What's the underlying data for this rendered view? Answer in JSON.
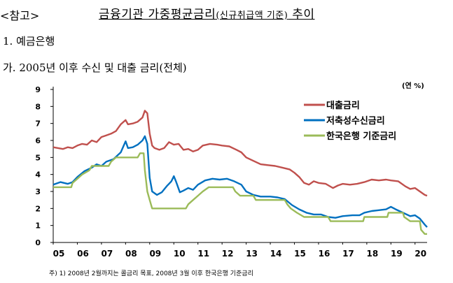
{
  "header": {
    "ref_tag": "<참고>",
    "title_main": "금융기관 가중평균금리",
    "title_paren": "(신규취급액 기준)",
    "title_end": " 추이"
  },
  "section": "1. 예금은행",
  "subsection": "가. 2005년 이후 수신 및 대출 금리(전체)",
  "unit": "(연 %)",
  "footnote": "주) 1) 2008년 2월까지는 콜금리 목표, 2008년 3월 이후 한국은행 기준금리",
  "chart_data": {
    "type": "line",
    "x_tick_labels": [
      "05",
      "06",
      "07",
      "08",
      "09",
      "10",
      "11",
      "12",
      "13",
      "14",
      "15",
      "16",
      "17",
      "18",
      "19",
      "20"
    ],
    "xlim": [
      2005.0,
      2020.5
    ],
    "ylim": [
      0,
      9
    ],
    "y_ticks": [
      0,
      1,
      2,
      3,
      4,
      5,
      6,
      7,
      8,
      9
    ],
    "ylabel": "(연 %)",
    "grid": false,
    "legend": "top-right",
    "series": [
      {
        "name": "대출금리",
        "color": "#c0504d",
        "points": [
          [
            2005.0,
            5.6
          ],
          [
            2005.2,
            5.55
          ],
          [
            2005.4,
            5.5
          ],
          [
            2005.6,
            5.6
          ],
          [
            2005.8,
            5.55
          ],
          [
            2006.0,
            5.7
          ],
          [
            2006.2,
            5.8
          ],
          [
            2006.4,
            5.75
          ],
          [
            2006.6,
            6.0
          ],
          [
            2006.8,
            5.9
          ],
          [
            2007.0,
            6.2
          ],
          [
            2007.2,
            6.3
          ],
          [
            2007.4,
            6.4
          ],
          [
            2007.6,
            6.55
          ],
          [
            2007.8,
            6.95
          ],
          [
            2008.0,
            7.2
          ],
          [
            2008.1,
            6.95
          ],
          [
            2008.3,
            7.0
          ],
          [
            2008.5,
            7.1
          ],
          [
            2008.7,
            7.35
          ],
          [
            2008.8,
            7.75
          ],
          [
            2008.9,
            7.6
          ],
          [
            2009.0,
            6.4
          ],
          [
            2009.1,
            5.7
          ],
          [
            2009.2,
            5.55
          ],
          [
            2009.4,
            5.45
          ],
          [
            2009.6,
            5.55
          ],
          [
            2009.8,
            5.9
          ],
          [
            2010.0,
            5.75
          ],
          [
            2010.2,
            5.8
          ],
          [
            2010.4,
            5.45
          ],
          [
            2010.6,
            5.5
          ],
          [
            2010.8,
            5.35
          ],
          [
            2011.0,
            5.45
          ],
          [
            2011.2,
            5.7
          ],
          [
            2011.5,
            5.8
          ],
          [
            2011.8,
            5.75
          ],
          [
            2012.0,
            5.7
          ],
          [
            2012.3,
            5.65
          ],
          [
            2012.6,
            5.45
          ],
          [
            2012.8,
            5.3
          ],
          [
            2013.0,
            5.0
          ],
          [
            2013.3,
            4.8
          ],
          [
            2013.6,
            4.6
          ],
          [
            2013.9,
            4.55
          ],
          [
            2014.2,
            4.5
          ],
          [
            2014.5,
            4.4
          ],
          [
            2014.8,
            4.3
          ],
          [
            2015.0,
            4.1
          ],
          [
            2015.2,
            3.85
          ],
          [
            2015.4,
            3.5
          ],
          [
            2015.6,
            3.4
          ],
          [
            2015.8,
            3.6
          ],
          [
            2016.0,
            3.5
          ],
          [
            2016.3,
            3.45
          ],
          [
            2016.6,
            3.2
          ],
          [
            2016.8,
            3.35
          ],
          [
            2017.0,
            3.45
          ],
          [
            2017.3,
            3.4
          ],
          [
            2017.6,
            3.45
          ],
          [
            2017.9,
            3.55
          ],
          [
            2018.2,
            3.7
          ],
          [
            2018.5,
            3.65
          ],
          [
            2018.8,
            3.7
          ],
          [
            2019.0,
            3.65
          ],
          [
            2019.3,
            3.6
          ],
          [
            2019.6,
            3.3
          ],
          [
            2019.8,
            3.15
          ],
          [
            2020.0,
            3.2
          ],
          [
            2020.2,
            3.0
          ],
          [
            2020.4,
            2.8
          ],
          [
            2020.5,
            2.75
          ]
        ]
      },
      {
        "name": "저축성수신금리",
        "color": "#0070c0",
        "points": [
          [
            2005.0,
            3.4
          ],
          [
            2005.3,
            3.55
          ],
          [
            2005.6,
            3.45
          ],
          [
            2005.8,
            3.55
          ],
          [
            2006.0,
            3.85
          ],
          [
            2006.3,
            4.2
          ],
          [
            2006.6,
            4.4
          ],
          [
            2006.8,
            4.6
          ],
          [
            2007.0,
            4.5
          ],
          [
            2007.2,
            4.75
          ],
          [
            2007.5,
            4.9
          ],
          [
            2007.8,
            5.3
          ],
          [
            2008.0,
            5.95
          ],
          [
            2008.1,
            5.55
          ],
          [
            2008.3,
            5.6
          ],
          [
            2008.5,
            5.75
          ],
          [
            2008.7,
            6.0
          ],
          [
            2008.8,
            6.25
          ],
          [
            2008.9,
            5.8
          ],
          [
            2009.0,
            3.8
          ],
          [
            2009.1,
            3.0
          ],
          [
            2009.3,
            2.8
          ],
          [
            2009.5,
            2.95
          ],
          [
            2009.7,
            3.3
          ],
          [
            2009.9,
            3.6
          ],
          [
            2010.0,
            3.9
          ],
          [
            2010.1,
            3.55
          ],
          [
            2010.25,
            2.95
          ],
          [
            2010.4,
            3.05
          ],
          [
            2010.6,
            3.2
          ],
          [
            2010.8,
            3.1
          ],
          [
            2011.0,
            3.4
          ],
          [
            2011.3,
            3.65
          ],
          [
            2011.6,
            3.75
          ],
          [
            2011.9,
            3.7
          ],
          [
            2012.2,
            3.75
          ],
          [
            2012.5,
            3.6
          ],
          [
            2012.8,
            3.4
          ],
          [
            2013.0,
            3.0
          ],
          [
            2013.3,
            2.8
          ],
          [
            2013.6,
            2.7
          ],
          [
            2014.0,
            2.7
          ],
          [
            2014.3,
            2.65
          ],
          [
            2014.6,
            2.55
          ],
          [
            2014.9,
            2.2
          ],
          [
            2015.2,
            1.95
          ],
          [
            2015.5,
            1.75
          ],
          [
            2015.8,
            1.65
          ],
          [
            2016.1,
            1.65
          ],
          [
            2016.4,
            1.5
          ],
          [
            2016.7,
            1.45
          ],
          [
            2017.0,
            1.55
          ],
          [
            2017.4,
            1.6
          ],
          [
            2017.7,
            1.6
          ],
          [
            2017.9,
            1.75
          ],
          [
            2018.2,
            1.85
          ],
          [
            2018.5,
            1.9
          ],
          [
            2018.8,
            1.95
          ],
          [
            2019.0,
            2.1
          ],
          [
            2019.2,
            1.95
          ],
          [
            2019.5,
            1.75
          ],
          [
            2019.8,
            1.55
          ],
          [
            2020.0,
            1.6
          ],
          [
            2020.2,
            1.4
          ],
          [
            2020.4,
            1.05
          ],
          [
            2020.5,
            0.9
          ]
        ]
      },
      {
        "name": "한국은행 기준금리",
        "color": "#9bbb59",
        "points": [
          [
            2005.0,
            3.25
          ],
          [
            2005.75,
            3.25
          ],
          [
            2005.8,
            3.5
          ],
          [
            2006.0,
            3.75
          ],
          [
            2006.2,
            4.0
          ],
          [
            2006.5,
            4.25
          ],
          [
            2006.6,
            4.5
          ],
          [
            2007.3,
            4.5
          ],
          [
            2007.4,
            4.75
          ],
          [
            2007.6,
            5.0
          ],
          [
            2008.5,
            5.0
          ],
          [
            2008.6,
            5.25
          ],
          [
            2008.75,
            5.25
          ],
          [
            2008.8,
            4.25
          ],
          [
            2008.9,
            3.0
          ],
          [
            2009.0,
            2.5
          ],
          [
            2009.1,
            2.0
          ],
          [
            2010.5,
            2.0
          ],
          [
            2010.6,
            2.25
          ],
          [
            2010.8,
            2.5
          ],
          [
            2011.0,
            2.75
          ],
          [
            2011.2,
            3.0
          ],
          [
            2011.45,
            3.25
          ],
          [
            2012.45,
            3.25
          ],
          [
            2012.55,
            3.0
          ],
          [
            2012.75,
            2.75
          ],
          [
            2013.3,
            2.75
          ],
          [
            2013.4,
            2.5
          ],
          [
            2014.6,
            2.5
          ],
          [
            2014.7,
            2.25
          ],
          [
            2014.85,
            2.0
          ],
          [
            2015.1,
            1.75
          ],
          [
            2015.4,
            1.5
          ],
          [
            2016.4,
            1.5
          ],
          [
            2016.5,
            1.25
          ],
          [
            2017.85,
            1.25
          ],
          [
            2017.9,
            1.5
          ],
          [
            2018.85,
            1.5
          ],
          [
            2018.9,
            1.75
          ],
          [
            2019.5,
            1.75
          ],
          [
            2019.55,
            1.5
          ],
          [
            2019.8,
            1.25
          ],
          [
            2020.2,
            1.25
          ],
          [
            2020.25,
            0.75
          ],
          [
            2020.4,
            0.5
          ],
          [
            2020.5,
            0.5
          ]
        ]
      }
    ]
  }
}
